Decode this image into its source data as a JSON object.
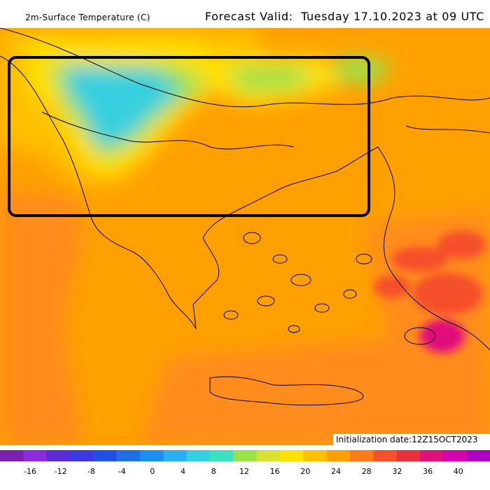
{
  "header": {
    "left_title": "2m-Surface Temperature (C)",
    "right_title": "Forecast Valid:  Tuesday 17.10.2023 at 09 UTC"
  },
  "footer": {
    "initialization": "Initialization date:12Z15OCT2023"
  },
  "colorbar": {
    "tick_labels": [
      "-16",
      "-12",
      "-8",
      "-4",
      "0",
      "4",
      "8",
      "12",
      "16",
      "20",
      "24",
      "28",
      "32",
      "36",
      "40"
    ],
    "colors": [
      "#7a1fb0",
      "#8a2be2",
      "#5a2ad6",
      "#3a3ae0",
      "#1e50e8",
      "#1f6fe6",
      "#1a8ff0",
      "#2ab0f0",
      "#35cfe0",
      "#3fe0c0",
      "#9be14a",
      "#d8e030",
      "#ffe000",
      "#ffc000",
      "#ffa000",
      "#ff7a1a",
      "#f4502a",
      "#e8303a",
      "#e0107a",
      "#d400b0",
      "#b000c8"
    ]
  },
  "map": {
    "field_colors": {
      "cool": "#35cfe0",
      "mild": "#9be14a",
      "yellow": "#ffe000",
      "orange_light": "#ffc000",
      "orange": "#ffa000",
      "orange_dark": "#ff8c1a",
      "red": "#f4502a",
      "hot": "#e0107a"
    },
    "highlight_box_color": "#000000"
  }
}
